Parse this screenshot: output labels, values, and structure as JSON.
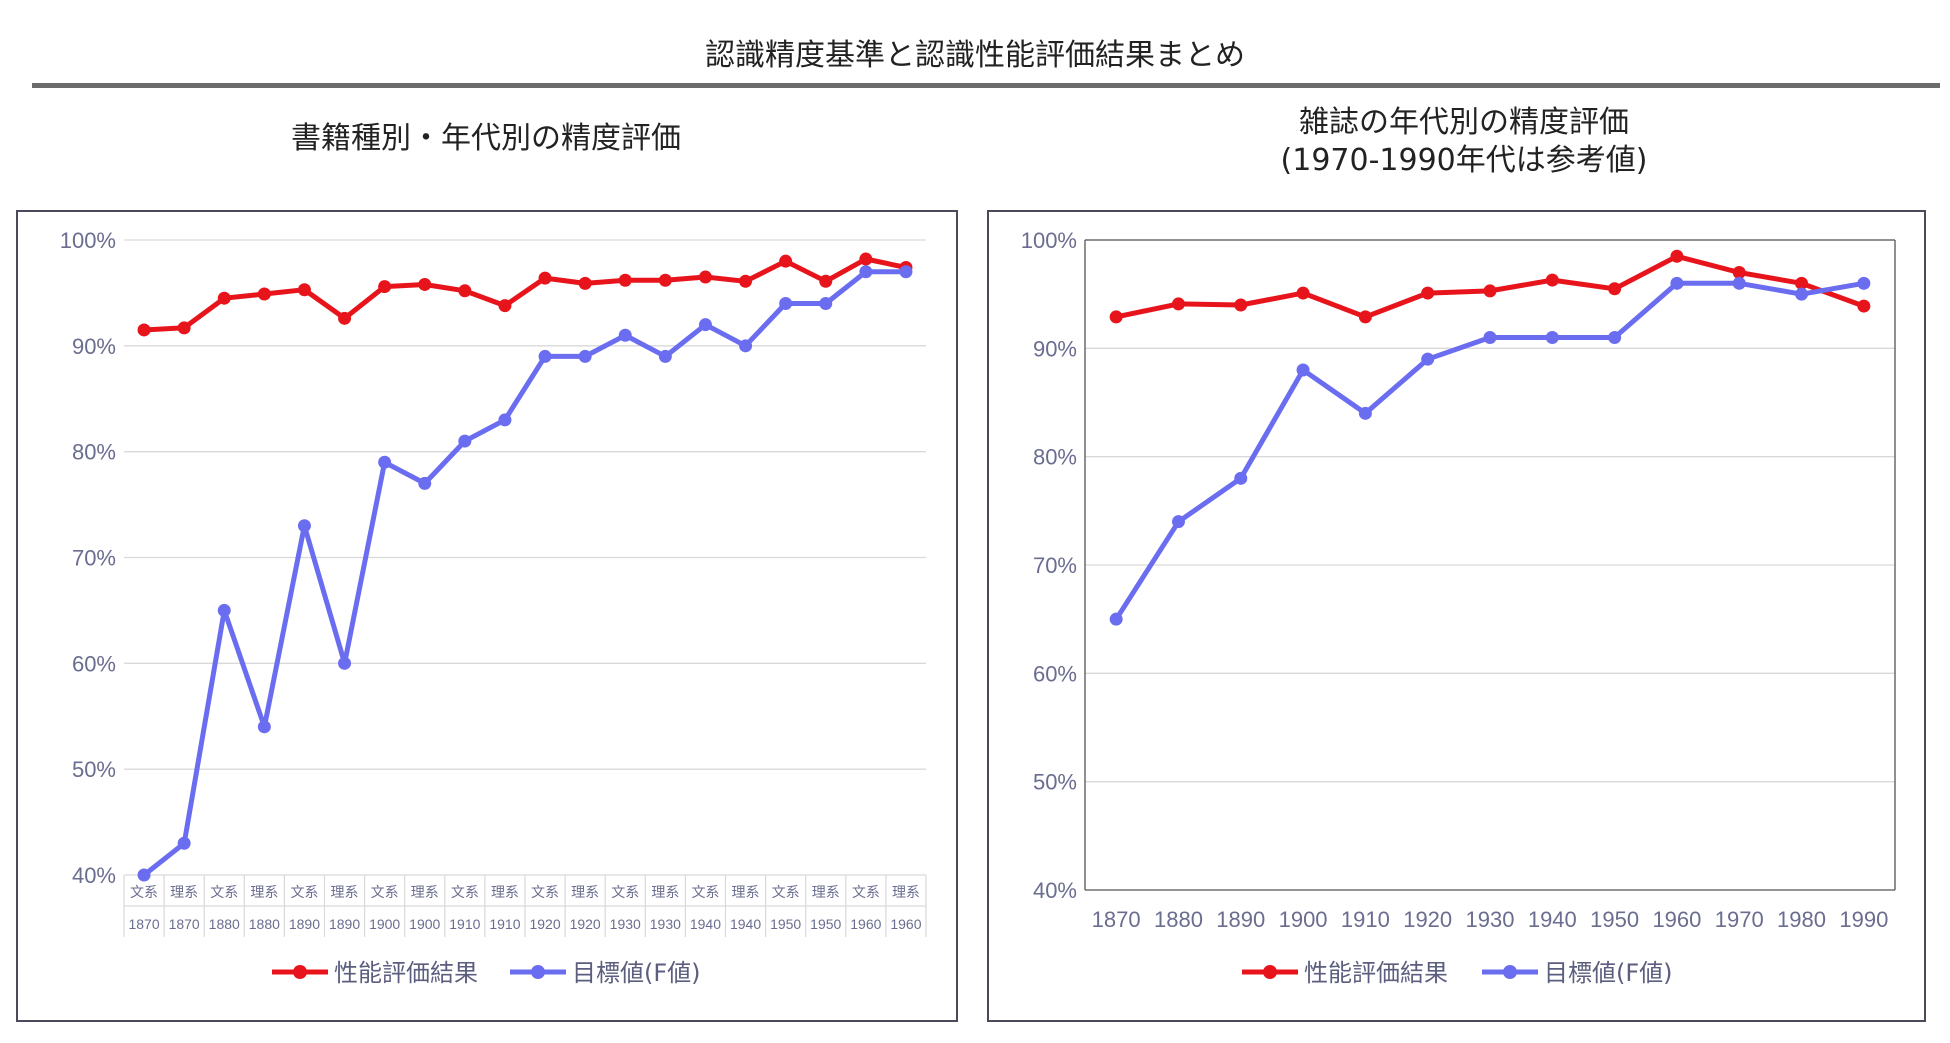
{
  "page": {
    "title": "認識精度基準と認識性能評価結果まとめ",
    "subtitle_left": "書籍種別・年代別の精度評価",
    "subtitle_right_line1": "雑誌の年代別の精度評価",
    "subtitle_right_line2": "(1970-1990年代は参考値)"
  },
  "colors": {
    "red": "#e8141c",
    "blue": "#6b6df0",
    "grid": "#d9d9d9",
    "tick": "#6a6d8f"
  },
  "chart_data": [
    {
      "type": "line",
      "categories_top": [
        "文系",
        "理系",
        "文系",
        "理系",
        "文系",
        "理系",
        "文系",
        "理系",
        "文系",
        "理系",
        "文系",
        "理系",
        "文系",
        "理系",
        "文系",
        "理系",
        "文系",
        "理系",
        "文系",
        "理系"
      ],
      "categories_bottom": [
        "1870",
        "1870",
        "1880",
        "1880",
        "1890",
        "1890",
        "1900",
        "1900",
        "1910",
        "1910",
        "1920",
        "1920",
        "1930",
        "1930",
        "1940",
        "1940",
        "1950",
        "1950",
        "1960",
        "1960"
      ],
      "yticks": [
        "100%",
        "90%",
        "80%",
        "70%",
        "60%",
        "50%",
        "40%"
      ],
      "ylim": [
        40,
        100
      ],
      "series": [
        {
          "name": "性能評価結果",
          "color": "#e8141c",
          "values": [
            91.5,
            91.7,
            94.5,
            94.9,
            95.3,
            92.6,
            95.6,
            95.8,
            95.2,
            93.8,
            96.4,
            95.9,
            96.2,
            96.2,
            96.5,
            96.1,
            98.0,
            96.1,
            98.2,
            97.4
          ]
        },
        {
          "name": "目標値(F値)",
          "color": "#6b6df0",
          "values": [
            40,
            43,
            65,
            54,
            73,
            60,
            79,
            77,
            81,
            83,
            89,
            89,
            91,
            89,
            92,
            90,
            94,
            94,
            97,
            97
          ]
        }
      ]
    },
    {
      "type": "line",
      "categories": [
        "1870",
        "1880",
        "1890",
        "1900",
        "1910",
        "1920",
        "1930",
        "1940",
        "1950",
        "1960",
        "1970",
        "1980",
        "1990"
      ],
      "yticks": [
        "100%",
        "90%",
        "80%",
        "70%",
        "60%",
        "50%",
        "40%"
      ],
      "ylim": [
        40,
        100
      ],
      "series": [
        {
          "name": "性能評価結果",
          "color": "#e8141c",
          "values": [
            92.9,
            94.1,
            94.0,
            95.1,
            92.9,
            95.1,
            95.3,
            96.3,
            95.5,
            98.5,
            97.0,
            96.0,
            93.9
          ]
        },
        {
          "name": "目標値(F値)",
          "color": "#6b6df0",
          "values": [
            65,
            74,
            78,
            88,
            84,
            89,
            91,
            91,
            91,
            96,
            96,
            95,
            96
          ]
        }
      ]
    }
  ]
}
